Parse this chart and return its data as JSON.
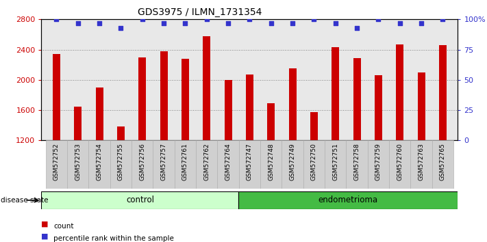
{
  "title": "GDS3975 / ILMN_1731354",
  "samples": [
    "GSM572752",
    "GSM572753",
    "GSM572754",
    "GSM572755",
    "GSM572756",
    "GSM572757",
    "GSM572761",
    "GSM572762",
    "GSM572764",
    "GSM572747",
    "GSM572748",
    "GSM572749",
    "GSM572750",
    "GSM572751",
    "GSM572758",
    "GSM572759",
    "GSM572760",
    "GSM572763",
    "GSM572765"
  ],
  "bar_values": [
    2340,
    1650,
    1900,
    1380,
    2300,
    2380,
    2280,
    2580,
    2000,
    2070,
    1690,
    2150,
    1570,
    2430,
    2290,
    2060,
    2470,
    2100,
    2460
  ],
  "pct_vals": [
    100,
    97,
    97,
    93,
    100,
    97,
    97,
    100,
    97,
    100,
    97,
    97,
    100,
    97,
    93,
    100,
    97,
    97,
    100
  ],
  "bar_color": "#cc0000",
  "dot_color": "#3333cc",
  "ylim_left": [
    1200,
    2800
  ],
  "ylim_right": [
    0,
    100
  ],
  "yticks_left": [
    1200,
    1600,
    2000,
    2400,
    2800
  ],
  "yticks_right": [
    0,
    25,
    50,
    75,
    100
  ],
  "ytick_right_labels": [
    "0",
    "25",
    "50",
    "75",
    "100%"
  ],
  "control_count": 9,
  "endometrioma_count": 10,
  "control_label": "control",
  "endometrioma_label": "endometrioma",
  "disease_state_label": "disease state",
  "legend_count_label": "count",
  "legend_percentile_label": "percentile rank within the sample",
  "control_bg": "#ccffcc",
  "endometrioma_bg": "#44bb44",
  "plot_bg": "#e8e8e8",
  "xtick_bg": "#d8d8d8",
  "title_fontsize": 10,
  "axis_label_color_left": "#cc0000",
  "axis_label_color_right": "#3333cc"
}
